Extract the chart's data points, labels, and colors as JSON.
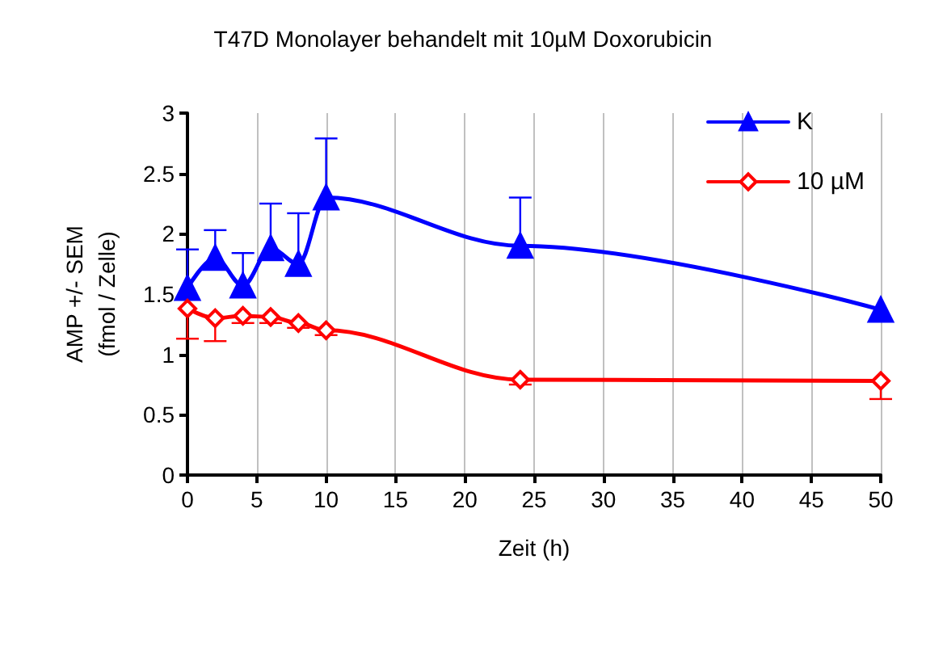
{
  "chart_data": {
    "type": "line",
    "title": "T47D Monolayer behandelt mit 10µM Doxorubicin",
    "xlabel": "Zeit (h)",
    "ylabel": "AMP +/- SEM\n(fmol / Zelle)",
    "x": [
      0,
      2,
      4,
      6,
      8,
      10,
      24,
      50
    ],
    "series": [
      {
        "name": "K",
        "color": "#0000ff",
        "marker": "triangle",
        "values": [
          1.55,
          1.8,
          1.57,
          1.88,
          1.75,
          2.3,
          1.9,
          1.37
        ],
        "errors": [
          [
            1.55,
            1.87
          ],
          [
            1.8,
            2.03
          ],
          [
            1.57,
            1.84
          ],
          [
            1.88,
            2.25
          ],
          [
            1.75,
            2.17
          ],
          [
            2.3,
            2.79
          ],
          [
            1.9,
            2.3
          ],
          null
        ]
      },
      {
        "name": "10 µM",
        "color": "#ff0000",
        "marker": "diamond",
        "values": [
          1.38,
          1.3,
          1.32,
          1.31,
          1.26,
          1.2,
          0.79,
          0.78
        ],
        "errors": [
          [
            1.13,
            1.38
          ],
          [
            1.11,
            1.3
          ],
          [
            1.26,
            1.32
          ],
          [
            1.26,
            1.31
          ],
          [
            1.22,
            1.26
          ],
          [
            1.16,
            1.2
          ],
          [
            0.75,
            0.79
          ],
          [
            0.63,
            0.78
          ]
        ]
      }
    ],
    "xlim": [
      0,
      50
    ],
    "xticks": [
      0,
      5,
      10,
      15,
      20,
      25,
      30,
      35,
      40,
      45,
      50
    ],
    "ylim": [
      0,
      3
    ],
    "yticks": [
      0,
      0.5,
      1,
      1.5,
      2,
      2.5,
      3
    ],
    "grid": "x",
    "legend": "top right",
    "line_style": "solid"
  }
}
